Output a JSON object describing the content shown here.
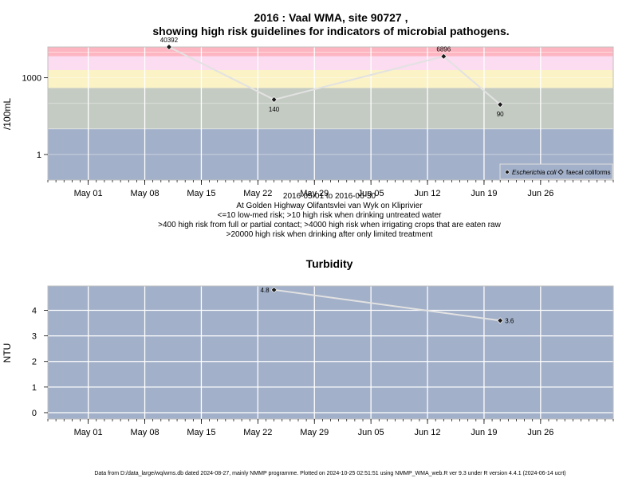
{
  "chart_data": [
    {
      "type": "line",
      "title_lines": [
        "2016 : Vaal WMA, site 90727 ,",
        "showing high risk guidelines for indicators of microbial pathogens."
      ],
      "ylabel": "/100mL",
      "y_scale": "log",
      "y_ticks": [
        {
          "value": 1,
          "label": "1"
        },
        {
          "value": 1000,
          "label": "1000"
        }
      ],
      "ylim": [
        0.1,
        16000
      ],
      "xlim": [
        "2016-04-26",
        "2016-07-05"
      ],
      "x_ticks": [
        {
          "date": "2016-05-01",
          "label": "May 01"
        },
        {
          "date": "2016-05-08",
          "label": "May 08"
        },
        {
          "date": "2016-05-15",
          "label": "May 15"
        },
        {
          "date": "2016-05-22",
          "label": "May 22"
        },
        {
          "date": "2016-05-29",
          "label": "May 29"
        },
        {
          "date": "2016-06-05",
          "label": "Jun 05"
        },
        {
          "date": "2016-06-12",
          "label": "Jun 12"
        },
        {
          "date": "2016-06-19",
          "label": "Jun 19"
        },
        {
          "date": "2016-06-26",
          "label": "Jun 26"
        }
      ],
      "risk_bands": [
        {
          "from": 0.1,
          "to": 10,
          "color": "#a2b0c9"
        },
        {
          "from": 10,
          "to": 400,
          "color": "#c4cbc3"
        },
        {
          "from": 400,
          "to": 2000,
          "color": "#fbf2c6"
        },
        {
          "from": 2000,
          "to": 7000,
          "color": "#fbdcf0"
        },
        {
          "from": 7000,
          "to": 16000,
          "color": "#fdb6c1"
        }
      ],
      "series": [
        {
          "name": "Escherichia coli",
          "marker": "filled-diamond",
          "line_color": "#e2e2e2",
          "points": [
            {
              "x": "2016-05-11",
              "y": 40392,
              "label": "40392"
            },
            {
              "x": "2016-05-24",
              "y": 140,
              "label": "140"
            },
            {
              "x": "2016-06-14",
              "y": 6896,
              "label": "6896"
            },
            {
              "x": "2016-06-21",
              "y": 90,
              "label": "90"
            }
          ]
        }
      ],
      "legend": {
        "placement": "bottom-right",
        "entries": [
          {
            "label": "Escherichia coli",
            "marker": "filled-diamond"
          },
          {
            "label": "faecal coliforms",
            "marker": "open-diamond"
          }
        ]
      },
      "notes": [
        "2016-05-01 to 2016-06-30",
        "At Golden Highway Olifantsvlei van Wyk on Kliprivier",
        "<=10 low-med risk; >10 high risk when drinking untreated water",
        ">400 high risk from full or partial contact; >4000 high risk when irrigating crops that are eaten raw",
        ">20000 high risk when drinking after only limited treatment"
      ]
    },
    {
      "type": "line",
      "title": "Turbidity",
      "ylabel": "NTU",
      "ylim": [
        -0.25,
        4.95
      ],
      "y_ticks": [
        0,
        1,
        2,
        3,
        4
      ],
      "xlim": [
        "2016-04-26",
        "2016-07-05"
      ],
      "x_ticks": [
        {
          "date": "2016-05-01",
          "label": "May 01"
        },
        {
          "date": "2016-05-08",
          "label": "May 08"
        },
        {
          "date": "2016-05-15",
          "label": "May 15"
        },
        {
          "date": "2016-05-22",
          "label": "May 22"
        },
        {
          "date": "2016-05-29",
          "label": "May 29"
        },
        {
          "date": "2016-06-05",
          "label": "Jun 05"
        },
        {
          "date": "2016-06-12",
          "label": "Jun 12"
        },
        {
          "date": "2016-06-19",
          "label": "Jun 19"
        },
        {
          "date": "2016-06-26",
          "label": "Jun 26"
        }
      ],
      "background": "#a2b0c9",
      "series": [
        {
          "marker": "filled-diamond",
          "line_color": "#e2e2e2",
          "points": [
            {
              "x": "2016-05-24",
              "y": 4.8,
              "label": "4.8"
            },
            {
              "x": "2016-06-21",
              "y": 3.6,
              "label": "3.6"
            }
          ]
        }
      ]
    }
  ],
  "footer": "Data from D:/data_large/wq/wms.db dated 2024-08-27, mainly NMMP programme. Plotted on 2024-10-25 02:51:51 using NMMP_WMA_web.R ver 9.3 under R version 4.4.1 (2024-06-14 ucrt)"
}
